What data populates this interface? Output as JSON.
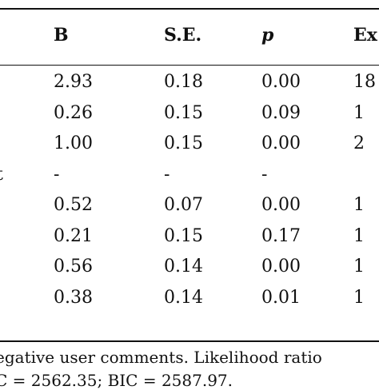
{
  "table": {
    "headers": {
      "b": "B",
      "se": "S.E.",
      "p": "p",
      "exp": "Ex"
    },
    "rows": [
      {
        "label": "",
        "b": "2.93",
        "se": "0.18",
        "p": "0.00",
        "exp": "18"
      },
      {
        "label": "",
        "b": "0.26",
        "se": "0.15",
        "p": "0.09",
        "exp": "1"
      },
      {
        "label": "",
        "b": "1.00",
        "se": "0.15",
        "p": "0.00",
        "exp": "2"
      },
      {
        "label": "t",
        "b": "-",
        "se": "-",
        "p": "-",
        "exp": ""
      },
      {
        "label": "",
        "b": "0.52",
        "se": "0.07",
        "p": "0.00",
        "exp": "1"
      },
      {
        "label": "",
        "b": "0.21",
        "se": "0.15",
        "p": "0.17",
        "exp": "1"
      },
      {
        "label": "",
        "b": "0.56",
        "se": "0.14",
        "p": "0.00",
        "exp": "1"
      },
      {
        "label": "",
        "b": "0.38",
        "se": "0.14",
        "p": "0.01",
        "exp": "1"
      }
    ]
  },
  "footnote": {
    "line1": "egative user comments. Likelihood ratio",
    "line2": "C = 2562.35; BIC = 2587.97."
  }
}
